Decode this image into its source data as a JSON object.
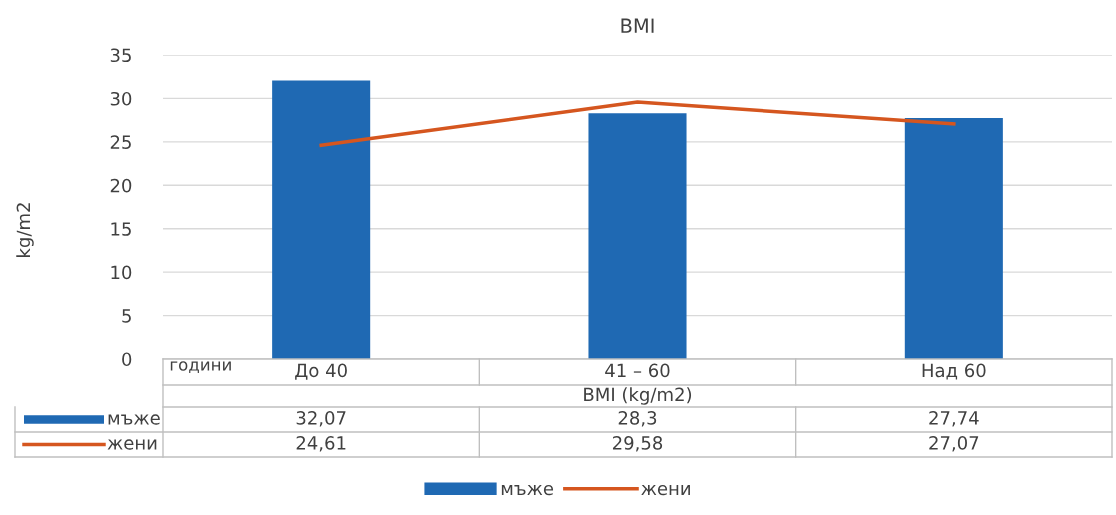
{
  "chart_data": {
    "type": "bar",
    "title": "BMI",
    "xlabel": "BMI (kg/m2)",
    "ylabel": "kg/m2",
    "categories": [
      "До 40",
      "41 – 60",
      "Над 60"
    ],
    "series": [
      {
        "name": "мъже",
        "color": "#1f69b3",
        "values": [
          32.07,
          28.3,
          27.74
        ],
        "value_labels": [
          "32,07",
          "28,3",
          "27,74"
        ]
      },
      {
        "name": "жени",
        "type": "line",
        "color": "#d5561f",
        "values": [
          24.61,
          29.58,
          27.07
        ],
        "value_labels": [
          "24,61",
          "29,58",
          "27,07"
        ]
      }
    ],
    "annotations": [
      "години"
    ],
    "ylim": [
      0,
      35
    ],
    "yticks": [
      0,
      5,
      10,
      15,
      20,
      25,
      30,
      35
    ],
    "grid": "y",
    "legend": "bottom",
    "marker": "none"
  }
}
